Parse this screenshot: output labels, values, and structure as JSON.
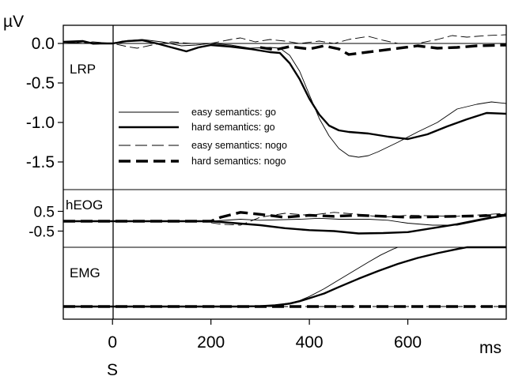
{
  "chart_data": {
    "type": "line",
    "x_unit_label": "ms",
    "stimulus_label": "S",
    "x_ticks": [
      0,
      200,
      400,
      600
    ],
    "xlim": [
      -100,
      800
    ],
    "series_legend": [
      {
        "name": "easy semantics: go",
        "style": "thin-solid",
        "color": "#000000"
      },
      {
        "name": "hard semantics: go",
        "style": "thick-solid",
        "color": "#000000"
      },
      {
        "name": "easy semantics: nogo",
        "style": "thin-dashed",
        "color": "#000000"
      },
      {
        "name": "hard semantics: nogo",
        "style": "thick-dashed",
        "color": "#000000"
      }
    ],
    "panels": [
      {
        "id": "lrp",
        "label": "LRP",
        "y_unit_label": "µV",
        "y_ticks": [
          0.0,
          -0.5,
          -1.0,
          -1.5
        ],
        "y_tick_labels": [
          "0.0",
          "-0.5",
          "-1.0",
          "-1.5"
        ],
        "ylim": [
          -1.75,
          0.12
        ],
        "zero_line": true,
        "series": {
          "easy_go": [
            [
              -100,
              0.02
            ],
            [
              -60,
              0.0
            ],
            [
              -40,
              0.02
            ],
            [
              0,
              0.0
            ],
            [
              20,
              0.03
            ],
            [
              60,
              0.05
            ],
            [
              100,
              0.02
            ],
            [
              140,
              -0.03
            ],
            [
              170,
              -0.02
            ],
            [
              200,
              0.0
            ],
            [
              240,
              -0.02
            ],
            [
              280,
              -0.06
            ],
            [
              320,
              -0.05
            ],
            [
              340,
              -0.06
            ],
            [
              360,
              -0.15
            ],
            [
              380,
              -0.35
            ],
            [
              400,
              -0.65
            ],
            [
              420,
              -0.95
            ],
            [
              440,
              -1.17
            ],
            [
              460,
              -1.33
            ],
            [
              480,
              -1.42
            ],
            [
              500,
              -1.44
            ],
            [
              520,
              -1.42
            ],
            [
              540,
              -1.37
            ],
            [
              580,
              -1.25
            ],
            [
              620,
              -1.12
            ],
            [
              660,
              -1.0
            ],
            [
              700,
              -0.83
            ],
            [
              740,
              -0.77
            ],
            [
              770,
              -0.74
            ],
            [
              800,
              -0.76
            ]
          ],
          "hard_go": [
            [
              -100,
              0.02
            ],
            [
              -60,
              0.03
            ],
            [
              -40,
              0.0
            ],
            [
              0,
              0.0
            ],
            [
              30,
              0.03
            ],
            [
              60,
              0.04
            ],
            [
              90,
              0.0
            ],
            [
              120,
              -0.05
            ],
            [
              150,
              -0.1
            ],
            [
              175,
              -0.05
            ],
            [
              200,
              -0.02
            ],
            [
              240,
              -0.04
            ],
            [
              280,
              -0.07
            ],
            [
              320,
              -0.11
            ],
            [
              340,
              -0.12
            ],
            [
              360,
              -0.25
            ],
            [
              380,
              -0.45
            ],
            [
              400,
              -0.7
            ],
            [
              420,
              -0.9
            ],
            [
              440,
              -1.04
            ],
            [
              460,
              -1.1
            ],
            [
              480,
              -1.12
            ],
            [
              520,
              -1.14
            ],
            [
              560,
              -1.18
            ],
            [
              600,
              -1.21
            ],
            [
              640,
              -1.15
            ],
            [
              680,
              -1.05
            ],
            [
              720,
              -0.96
            ],
            [
              760,
              -0.88
            ],
            [
              800,
              -0.89
            ]
          ],
          "easy_nogo": [
            [
              -100,
              0.0
            ],
            [
              -60,
              0.02
            ],
            [
              -40,
              -0.01
            ],
            [
              0,
              0.0
            ],
            [
              30,
              -0.04
            ],
            [
              50,
              -0.06
            ],
            [
              80,
              -0.02
            ],
            [
              120,
              0.02
            ],
            [
              160,
              0.0
            ],
            [
              200,
              0.0
            ],
            [
              240,
              0.05
            ],
            [
              260,
              0.07
            ],
            [
              290,
              0.02
            ],
            [
              320,
              0.05
            ],
            [
              350,
              0.03
            ],
            [
              380,
              0.0
            ],
            [
              420,
              0.03
            ],
            [
              450,
              0.0
            ],
            [
              480,
              0.05
            ],
            [
              520,
              0.09
            ],
            [
              550,
              0.04
            ],
            [
              580,
              0.0
            ],
            [
              620,
              0.0
            ],
            [
              660,
              0.05
            ],
            [
              690,
              0.1
            ],
            [
              720,
              0.08
            ],
            [
              760,
              0.1
            ],
            [
              800,
              0.11
            ]
          ],
          "hard_nogo": [
            [
              300,
              -0.05
            ],
            [
              330,
              -0.08
            ],
            [
              360,
              -0.04
            ],
            [
              400,
              -0.07
            ],
            [
              430,
              -0.03
            ],
            [
              460,
              -0.07
            ],
            [
              480,
              -0.14
            ],
            [
              620,
              -0.03
            ],
            [
              660,
              -0.06
            ],
            [
              700,
              -0.05
            ],
            [
              740,
              -0.03
            ],
            [
              800,
              -0.02
            ]
          ]
        }
      },
      {
        "id": "heog",
        "label": "hEOG",
        "y_ticks": [
          0.5,
          -0.5
        ],
        "y_tick_labels": [
          "0.5",
          "-0.5"
        ],
        "ylim": [
          -1.0,
          1.0
        ],
        "zero_line": false,
        "series": {
          "easy_go": [
            [
              -100,
              0.0
            ],
            [
              200,
              0.0
            ],
            [
              260,
              0.1
            ],
            [
              300,
              0.05
            ],
            [
              380,
              0.1
            ],
            [
              420,
              0.15
            ],
            [
              460,
              0.1
            ],
            [
              520,
              0.1
            ],
            [
              560,
              0.05
            ],
            [
              600,
              -0.1
            ],
            [
              650,
              -0.2
            ],
            [
              700,
              -0.2
            ],
            [
              760,
              0.1
            ],
            [
              800,
              0.3
            ]
          ],
          "hard_go": [
            [
              -100,
              0.0
            ],
            [
              200,
              0.0
            ],
            [
              250,
              -0.1
            ],
            [
              300,
              -0.2
            ],
            [
              350,
              -0.35
            ],
            [
              400,
              -0.45
            ],
            [
              450,
              -0.5
            ],
            [
              500,
              -0.62
            ],
            [
              550,
              -0.6
            ],
            [
              600,
              -0.55
            ],
            [
              650,
              -0.35
            ],
            [
              700,
              -0.15
            ],
            [
              750,
              0.1
            ],
            [
              800,
              0.3
            ]
          ],
          "easy_nogo": [
            [
              -100,
              0.0
            ],
            [
              180,
              0.0
            ],
            [
              220,
              -0.15
            ],
            [
              260,
              -0.2
            ],
            [
              300,
              0.2
            ],
            [
              350,
              0.4
            ],
            [
              400,
              0.3
            ],
            [
              450,
              0.45
            ],
            [
              500,
              0.35
            ],
            [
              550,
              0.2
            ],
            [
              600,
              0.3
            ],
            [
              700,
              0.25
            ],
            [
              800,
              0.4
            ]
          ],
          "hard_nogo": [
            [
              -100,
              0.0
            ],
            [
              200,
              0.0
            ],
            [
              220,
              0.2
            ],
            [
              260,
              0.45
            ],
            [
              300,
              0.35
            ],
            [
              350,
              0.2
            ],
            [
              400,
              0.3
            ],
            [
              450,
              0.25
            ],
            [
              500,
              0.3
            ],
            [
              600,
              0.2
            ],
            [
              700,
              0.25
            ],
            [
              800,
              0.3
            ]
          ]
        }
      },
      {
        "id": "emg",
        "label": "EMG",
        "y_ticks": [],
        "y_tick_labels": [],
        "ylim": [
          0,
          1.0
        ],
        "zero_line": false,
        "series": {
          "easy_go": [
            [
              -100,
              0.0
            ],
            [
              250,
              0.0
            ],
            [
              300,
              0.005
            ],
            [
              330,
              0.02
            ],
            [
              360,
              0.06
            ],
            [
              380,
              0.1
            ],
            [
              400,
              0.17
            ],
            [
              430,
              0.3
            ],
            [
              460,
              0.45
            ],
            [
              490,
              0.6
            ],
            [
              520,
              0.75
            ],
            [
              545,
              0.87
            ],
            [
              570,
              0.97
            ],
            [
              580,
              1.0
            ]
          ],
          "hard_go": [
            [
              -100,
              0.0
            ],
            [
              250,
              0.0
            ],
            [
              300,
              0.005
            ],
            [
              330,
              0.02
            ],
            [
              360,
              0.05
            ],
            [
              380,
              0.09
            ],
            [
              400,
              0.14
            ],
            [
              430,
              0.22
            ],
            [
              460,
              0.33
            ],
            [
              500,
              0.47
            ],
            [
              540,
              0.6
            ],
            [
              580,
              0.72
            ],
            [
              620,
              0.82
            ],
            [
              660,
              0.9
            ],
            [
              700,
              0.97
            ],
            [
              720,
              1.0
            ],
            [
              800,
              1.0
            ]
          ],
          "easy_nogo": [
            [
              -100,
              0.0
            ],
            [
              800,
              0.0
            ]
          ],
          "hard_nogo": [
            [
              -100,
              0.0
            ],
            [
              800,
              0.0
            ]
          ]
        }
      }
    ]
  }
}
